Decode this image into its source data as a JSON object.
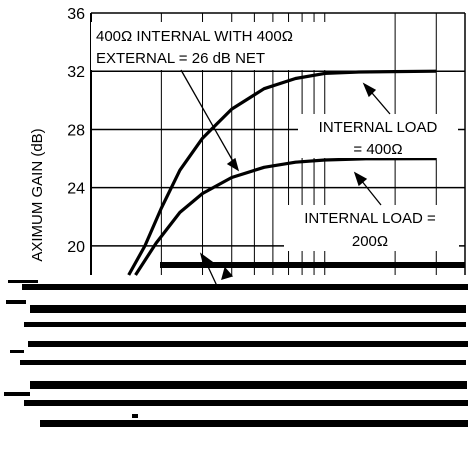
{
  "chart_data": {
    "type": "line",
    "ylabel": "AXIMUM GAIN (dB)",
    "ylim": [
      18,
      36
    ],
    "yticks": [
      20,
      24,
      28,
      32,
      36
    ],
    "xscale": "log",
    "grid": true,
    "series": [
      {
        "values_note": "upper curve",
        "points": [
          [
            1.45,
            18.0
          ],
          [
            1.7,
            20.0
          ],
          [
            2.0,
            22.6
          ],
          [
            2.4,
            25.2
          ],
          [
            3.0,
            27.4
          ],
          [
            4.0,
            29.4
          ],
          [
            5.5,
            30.8
          ],
          [
            7.5,
            31.5
          ],
          [
            10.0,
            31.85
          ],
          [
            14.0,
            31.95
          ],
          [
            30.0,
            32.0
          ]
        ]
      },
      {
        "values_note": "lower curve",
        "points": [
          [
            1.55,
            18.0
          ],
          [
            1.9,
            20.2
          ],
          [
            2.4,
            22.3
          ],
          [
            3.0,
            23.6
          ],
          [
            4.0,
            24.7
          ],
          [
            5.5,
            25.4
          ],
          [
            7.5,
            25.75
          ],
          [
            10.0,
            25.9
          ],
          [
            15.0,
            25.98
          ],
          [
            30.0,
            26.0
          ]
        ]
      }
    ],
    "annotations": {
      "top": [
        "400Ω INTERNAL WITH 400Ω",
        "EXTERNAL = 26 dB NET"
      ],
      "upper_right": [
        "INTERNAL LOAD",
        "= 400Ω"
      ],
      "lower_right": [
        "INTERNAL LOAD =",
        "200Ω"
      ]
    }
  }
}
